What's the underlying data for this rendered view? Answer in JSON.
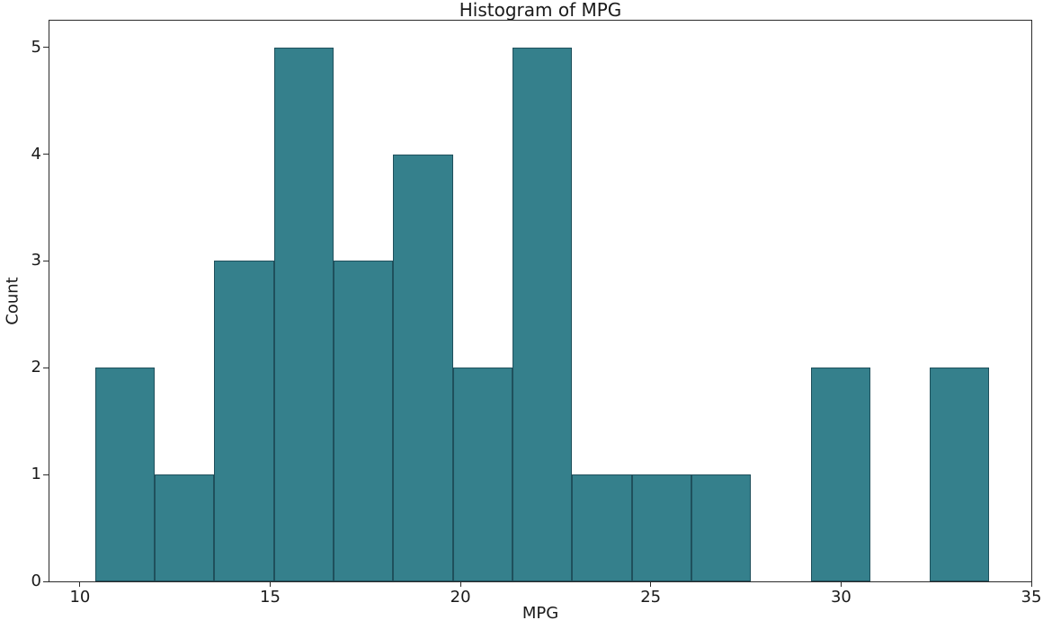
{
  "chart_data": {
    "type": "bar",
    "subtype": "histogram",
    "title": "Histogram of MPG",
    "xlabel": "MPG",
    "ylabel": "Count",
    "bin_edges": [
      10.4,
      11.9667,
      13.5333,
      15.1,
      16.6667,
      18.2333,
      19.8,
      21.3667,
      22.9333,
      24.5,
      26.0667,
      27.6333,
      29.2,
      30.7667,
      32.3333,
      33.9
    ],
    "counts": [
      2,
      1,
      3,
      5,
      3,
      4,
      2,
      5,
      1,
      1,
      1,
      0,
      2,
      0,
      2
    ],
    "xticks": [
      10,
      15,
      20,
      25,
      30,
      35
    ],
    "yticks": [
      0,
      1,
      2,
      3,
      4,
      5
    ],
    "xlim": [
      9.2,
      35.0
    ],
    "ylim": [
      0,
      5.25
    ],
    "grid": "off",
    "legend_position": "none",
    "bar_color": "#35808C",
    "bar_edge_color": "#1F505C",
    "axis_color": "#2b2b2b",
    "text_color": "#1a1a1a",
    "background_color": "#ffffff"
  }
}
